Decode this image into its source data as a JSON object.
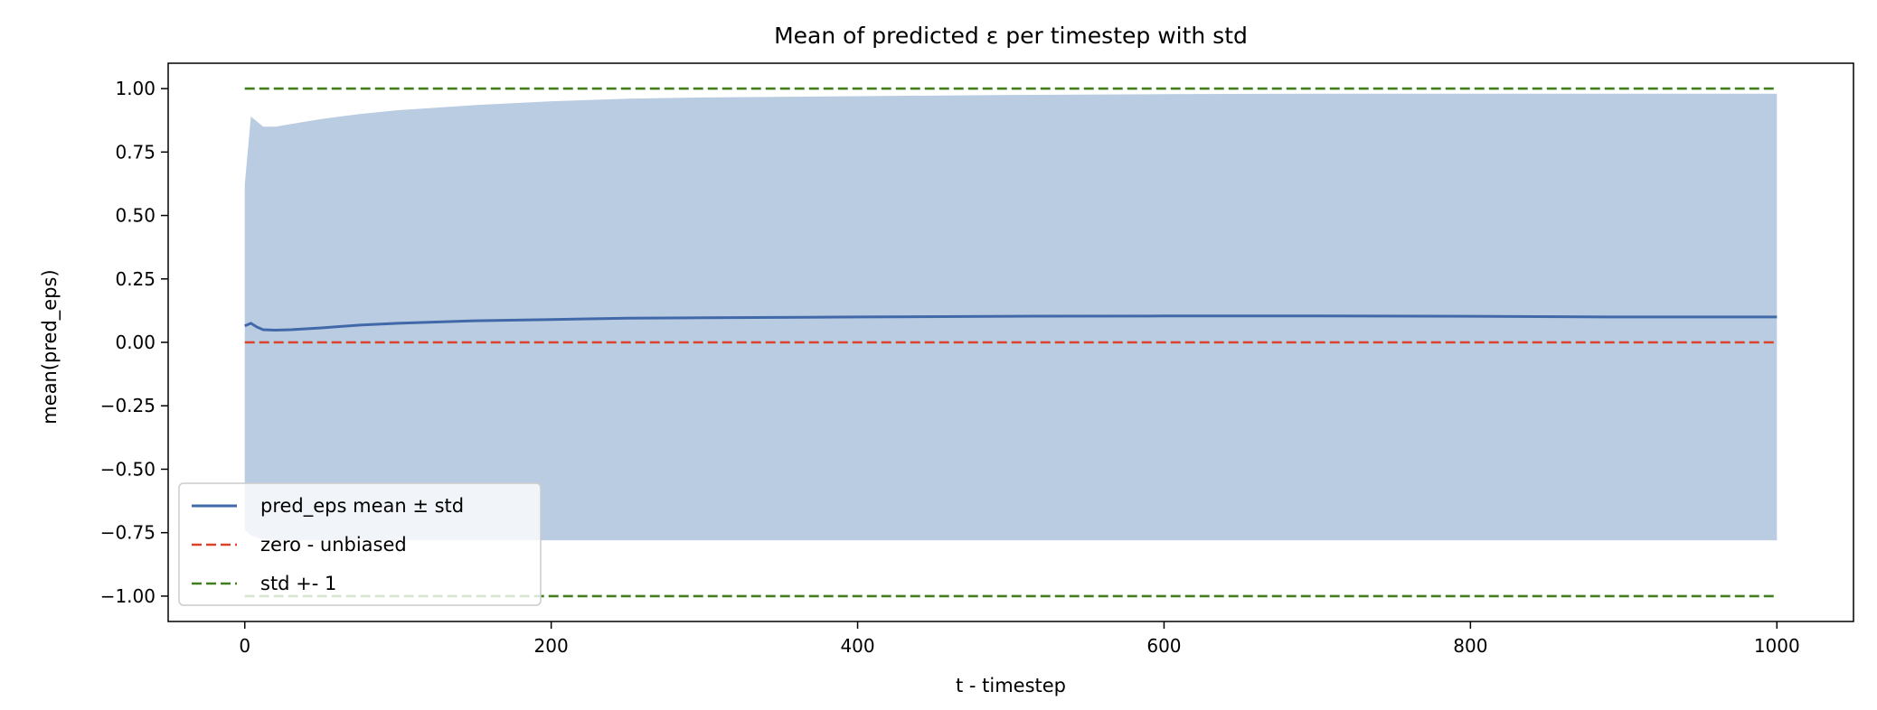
{
  "chart_data": {
    "type": "line",
    "title": "Mean of predicted ε per timestep with std",
    "xlabel": "t - timestep",
    "ylabel": "mean(pred_eps)",
    "xlim": [
      -50,
      1050
    ],
    "ylim": [
      -1.1,
      1.1
    ],
    "xticks": [
      0,
      200,
      400,
      600,
      800,
      1000
    ],
    "xtick_labels": [
      "0",
      "200",
      "400",
      "600",
      "800",
      "1000"
    ],
    "yticks": [
      1.0,
      0.75,
      0.5,
      0.25,
      0.0,
      -0.25,
      -0.5,
      -0.75,
      -1.0
    ],
    "ytick_labels": [
      "1.00",
      "0.75",
      "0.50",
      "0.25",
      "0.00",
      "−0.25",
      "−0.50",
      "−0.75",
      "−1.00"
    ],
    "grid": false,
    "legend_position": "lower-left",
    "series": [
      {
        "name": "pred_eps mean ± std",
        "kind": "line-with-band",
        "color": "#4169aa",
        "band_color": "#b9cce1",
        "x": [
          0,
          4,
          8,
          12,
          20,
          30,
          50,
          75,
          100,
          150,
          200,
          250,
          300,
          400,
          500,
          600,
          700,
          800,
          900,
          1000
        ],
        "mean": [
          0.065,
          0.075,
          0.06,
          0.05,
          0.048,
          0.05,
          0.057,
          0.068,
          0.075,
          0.085,
          0.09,
          0.095,
          0.097,
          0.1,
          0.103,
          0.104,
          0.104,
          0.103,
          0.1,
          0.1
        ],
        "upper": [
          0.62,
          0.89,
          0.87,
          0.85,
          0.85,
          0.86,
          0.88,
          0.9,
          0.915,
          0.935,
          0.95,
          0.96,
          0.965,
          0.97,
          0.975,
          0.978,
          0.98,
          0.98,
          0.98,
          0.98
        ],
        "lower": [
          -0.74,
          -0.76,
          -0.77,
          -0.775,
          -0.78,
          -0.78,
          -0.78,
          -0.78,
          -0.78,
          -0.78,
          -0.78,
          -0.78,
          -0.78,
          -0.78,
          -0.78,
          -0.78,
          -0.78,
          -0.78,
          -0.78,
          -0.78
        ]
      },
      {
        "name": "zero - unbiased",
        "kind": "hline",
        "color": "#d9432a",
        "dash": true,
        "x": [
          0,
          1000
        ],
        "y": [
          0.0,
          0.0
        ]
      },
      {
        "name": "std +- 1",
        "kind": "hline-pair",
        "color": "#3f7f1e",
        "dash": true,
        "x": [
          0,
          1000
        ],
        "y_values": [
          1.0,
          -1.0
        ]
      }
    ]
  }
}
